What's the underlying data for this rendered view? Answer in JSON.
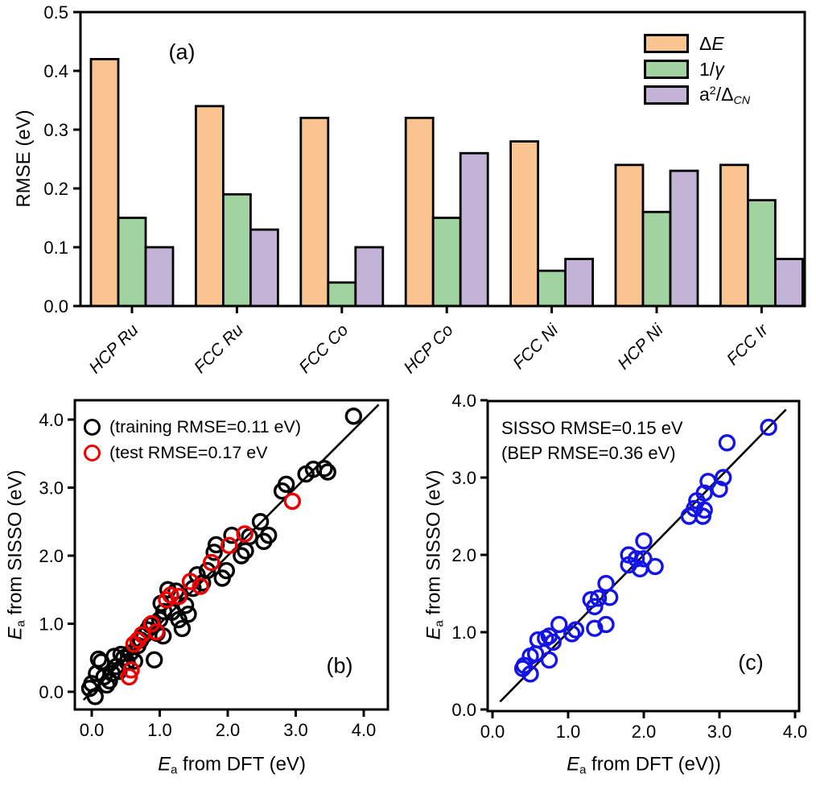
{
  "chart_data": [
    {
      "id": "panel-a",
      "type": "bar",
      "panel_label": "(a)",
      "ylabel": "RMSE (eV)",
      "ylim": [
        0,
        0.5
      ],
      "yticks": [
        0,
        0.1,
        0.2,
        0.3,
        0.4,
        0.5
      ],
      "grid": false,
      "legend_position": "top-right",
      "categories": [
        "HCP Ru",
        "FCC Ru",
        "FCC Co",
        "HCP Co",
        "FCC Ni",
        "HCP Ni",
        "FCC Ir"
      ],
      "series": [
        {
          "name": "ΔE",
          "label_parts": {
            "p1": "Δ",
            "p2": "E"
          },
          "color": "#fac491",
          "values": [
            0.42,
            0.34,
            0.32,
            0.32,
            0.28,
            0.24,
            0.24
          ]
        },
        {
          "name": "1/γ",
          "label_parts": {
            "p1": "1/",
            "p2": "γ"
          },
          "color": "#a0d3a0",
          "values": [
            0.15,
            0.19,
            0.04,
            0.15,
            0.06,
            0.16,
            0.18
          ]
        },
        {
          "name": "a2/ΔCN",
          "label_parts": {
            "p1": "a",
            "sup": "2",
            "p3": "/Δ",
            "sub": "CN"
          },
          "color": "#c2b3d7",
          "values": [
            0.1,
            0.13,
            0.1,
            0.26,
            0.08,
            0.23,
            0.08
          ]
        }
      ]
    },
    {
      "id": "panel-b",
      "type": "scatter",
      "panel_label": "(b)",
      "xlabel_parts": {
        "e": "E",
        "sub": "a",
        "rest": " from DFT (eV)"
      },
      "ylabel_parts": {
        "e": "E",
        "sub": "a",
        "rest": " from SISSO (eV)"
      },
      "xlim": [
        -0.25,
        4.35
      ],
      "ylim": [
        -0.26,
        4.28
      ],
      "xticks": [
        0,
        1,
        2,
        3,
        4
      ],
      "yticks": [
        0,
        1,
        2,
        3,
        4
      ],
      "identity_line": {
        "from": [
          -0.12,
          -0.12
        ],
        "to": [
          4.22,
          4.22
        ]
      },
      "series": [
        {
          "name": "training",
          "legend": "(training RMSE=0.11 eV)",
          "color": "#000000",
          "points": [
            [
              -0.03,
              0.05
            ],
            [
              0.0,
              0.12
            ],
            [
              0.05,
              -0.07
            ],
            [
              0.07,
              0.27
            ],
            [
              0.1,
              0.48
            ],
            [
              0.14,
              0.44
            ],
            [
              0.18,
              0.22
            ],
            [
              0.22,
              0.1
            ],
            [
              0.26,
              0.16
            ],
            [
              0.3,
              0.27
            ],
            [
              0.33,
              0.52
            ],
            [
              0.36,
              0.37
            ],
            [
              0.4,
              0.3
            ],
            [
              0.43,
              0.55
            ],
            [
              0.47,
              0.5
            ],
            [
              0.52,
              0.44
            ],
            [
              0.57,
              0.57
            ],
            [
              0.63,
              0.45
            ],
            [
              0.68,
              0.68
            ],
            [
              0.72,
              0.76
            ],
            [
              0.77,
              0.83
            ],
            [
              0.82,
              0.91
            ],
            [
              0.86,
              0.98
            ],
            [
              0.9,
              1.0
            ],
            [
              0.92,
              0.47
            ],
            [
              0.96,
              0.86
            ],
            [
              1.0,
              1.06
            ],
            [
              1.02,
              1.3
            ],
            [
              1.05,
              0.82
            ],
            [
              1.06,
              1.18
            ],
            [
              1.12,
              1.5
            ],
            [
              1.18,
              1.17
            ],
            [
              1.24,
              1.48
            ],
            [
              1.28,
              1.06
            ],
            [
              1.33,
              0.93
            ],
            [
              1.38,
              1.27
            ],
            [
              1.42,
              1.14
            ],
            [
              1.49,
              1.52
            ],
            [
              1.55,
              1.72
            ],
            [
              1.63,
              1.6
            ],
            [
              1.7,
              1.78
            ],
            [
              1.8,
              2.05
            ],
            [
              1.83,
              2.16
            ],
            [
              1.92,
              1.67
            ],
            [
              1.98,
              1.78
            ],
            [
              2.06,
              2.3
            ],
            [
              2.2,
              2.0
            ],
            [
              2.26,
              2.07
            ],
            [
              2.32,
              2.28
            ],
            [
              2.48,
              2.5
            ],
            [
              2.53,
              2.21
            ],
            [
              2.6,
              2.3
            ],
            [
              2.8,
              2.95
            ],
            [
              2.86,
              3.05
            ],
            [
              3.15,
              3.2
            ],
            [
              3.26,
              3.27
            ],
            [
              3.42,
              3.28
            ],
            [
              3.47,
              3.23
            ],
            [
              3.85,
              4.05
            ]
          ]
        },
        {
          "name": "test",
          "legend": "(test RMSE=0.17 eV",
          "color": "#ee0000",
          "points": [
            [
              0.55,
              0.22
            ],
            [
              0.58,
              0.32
            ],
            [
              0.62,
              0.7
            ],
            [
              0.68,
              0.76
            ],
            [
              0.74,
              0.84
            ],
            [
              0.88,
              1.0
            ],
            [
              0.95,
              0.88
            ],
            [
              1.1,
              1.35
            ],
            [
              1.16,
              1.42
            ],
            [
              1.28,
              1.4
            ],
            [
              1.45,
              1.62
            ],
            [
              1.6,
              1.55
            ],
            [
              1.76,
              1.9
            ],
            [
              2.02,
              2.15
            ],
            [
              2.25,
              2.32
            ],
            [
              2.95,
              2.8
            ]
          ]
        }
      ]
    },
    {
      "id": "panel-c",
      "type": "scatter",
      "panel_label": "(c)",
      "annotations": [
        "SISSO RMSE=0.15 eV",
        "(BEP RMSE=0.36 eV)"
      ],
      "xlabel_parts": {
        "e": "E",
        "sub": "a",
        "rest": " from DFT (eV))"
      },
      "ylabel_parts": {
        "e": "E",
        "sub": "a",
        "rest": " from SISSO (eV)"
      },
      "xlim": [
        -0.06,
        4.05
      ],
      "ylim": [
        -0.02,
        4.0
      ],
      "xticks": [
        0,
        1,
        2,
        3,
        4
      ],
      "yticks": [
        0,
        1,
        2,
        3,
        4
      ],
      "identity_line": {
        "from": [
          0.1,
          0.1
        ],
        "to": [
          3.88,
          3.88
        ]
      },
      "series": [
        {
          "name": "SISSO",
          "legend": "",
          "color": "#1414e6",
          "points": [
            [
              0.4,
              0.53
            ],
            [
              0.42,
              0.57
            ],
            [
              0.5,
              0.46
            ],
            [
              0.5,
              0.69
            ],
            [
              0.57,
              0.72
            ],
            [
              0.6,
              0.9
            ],
            [
              0.7,
              0.92
            ],
            [
              0.75,
              0.95
            ],
            [
              0.75,
              0.64
            ],
            [
              0.8,
              0.87
            ],
            [
              0.88,
              1.1
            ],
            [
              1.05,
              0.98
            ],
            [
              1.1,
              1.03
            ],
            [
              1.35,
              1.05
            ],
            [
              1.5,
              1.1
            ],
            [
              1.3,
              1.42
            ],
            [
              1.35,
              1.33
            ],
            [
              1.4,
              1.44
            ],
            [
              1.55,
              1.45
            ],
            [
              1.5,
              1.63
            ],
            [
              1.8,
              1.87
            ],
            [
              1.8,
              2.0
            ],
            [
              1.9,
              1.95
            ],
            [
              1.95,
              1.82
            ],
            [
              2.0,
              1.95
            ],
            [
              2.0,
              2.18
            ],
            [
              2.15,
              1.85
            ],
            [
              2.6,
              2.5
            ],
            [
              2.67,
              2.6
            ],
            [
              2.7,
              2.7
            ],
            [
              2.78,
              2.5
            ],
            [
              2.8,
              2.58
            ],
            [
              2.8,
              2.8
            ],
            [
              2.85,
              2.95
            ],
            [
              3.0,
              2.85
            ],
            [
              3.05,
              3.0
            ],
            [
              3.1,
              3.45
            ],
            [
              3.65,
              3.65
            ]
          ]
        }
      ]
    }
  ]
}
